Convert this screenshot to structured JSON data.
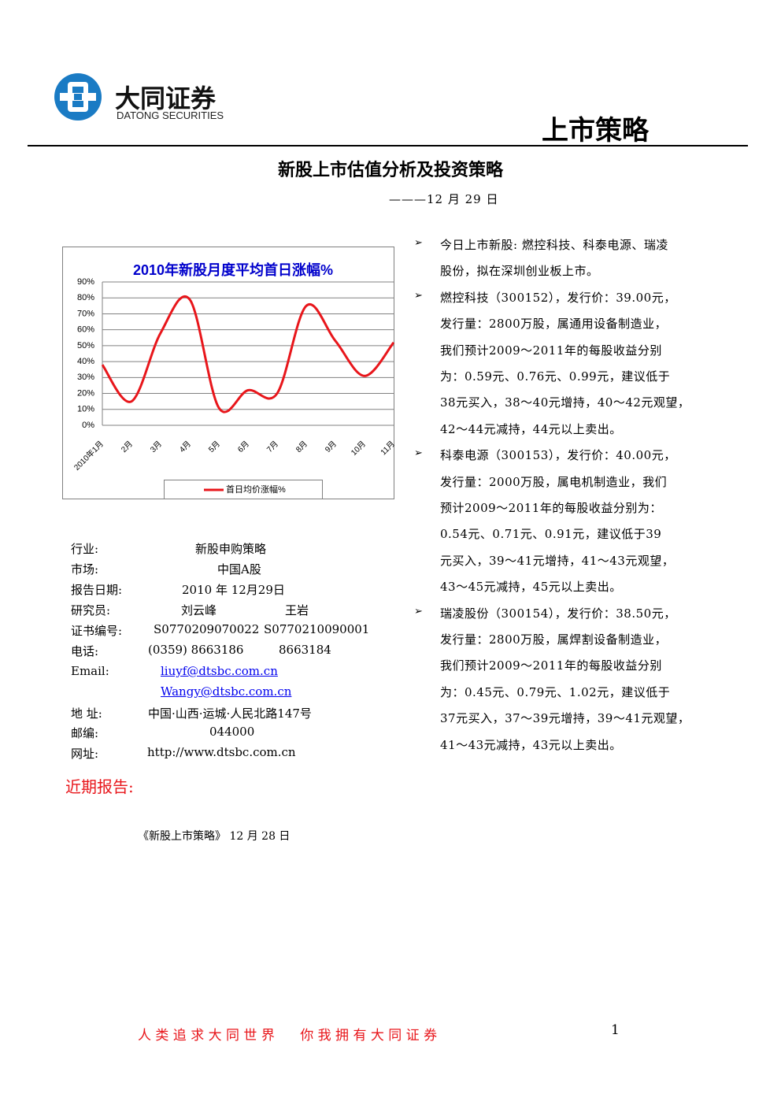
{
  "header": {
    "company": "大同证券",
    "company_en": "DATONG SECURITIES",
    "section": "上市策略"
  },
  "title": "新股上市估值分析及投资策略",
  "date": "———12 月 29 日",
  "chart_data": {
    "type": "line",
    "title": "2010年新股月度平均首日涨幅%",
    "categories": [
      "2010年1月",
      "2月",
      "3月",
      "4月",
      "5月",
      "6月",
      "7月",
      "8月",
      "9月",
      "10月",
      "11月"
    ],
    "series": [
      {
        "name": "首日均价涨幅%",
        "color": "#e8161b",
        "values": [
          38,
          15,
          58,
          79,
          11,
          22,
          20,
          75,
          53,
          31,
          52
        ]
      }
    ],
    "ylim": [
      0,
      90
    ],
    "yticks": [
      {
        "value": 0,
        "label": "0%"
      },
      {
        "value": 10,
        "label": "10%"
      },
      {
        "value": 20,
        "label": "20%"
      },
      {
        "value": 30,
        "label": "30%"
      },
      {
        "value": 40,
        "label": "40%"
      },
      {
        "value": 50,
        "label": "50%"
      },
      {
        "value": 60,
        "label": "60%"
      },
      {
        "value": 70,
        "label": "70%"
      },
      {
        "value": 80,
        "label": "80%"
      },
      {
        "value": 90,
        "label": "90%"
      }
    ],
    "grid": true,
    "smooth": true,
    "legend": "bottom"
  },
  "info": [
    {
      "label": "行业:",
      "values": [
        "新股申购策略"
      ]
    },
    {
      "label": "市场:",
      "values": [
        "中国A股"
      ]
    },
    {
      "label": "报告日期:",
      "values": [
        "2010 年 12月29日"
      ]
    },
    {
      "label": "研究员:",
      "values": [
        "刘云峰",
        "王岩"
      ]
    },
    {
      "label": "证书编号:",
      "values": [
        "S0770209070022",
        "S0770210090001"
      ]
    },
    {
      "label": "电话:",
      "values": [
        "(0359) 8663186",
        "8663184"
      ]
    },
    {
      "label": "Email:",
      "values": [
        "liuyf@dtsbc.com.cn",
        "Wangy@dtsbc.com.cn"
      ]
    },
    {
      "label": "地 址:",
      "values": [
        "中国·山西·运城·人民北路147号"
      ]
    },
    {
      "label": "邮编:",
      "values": [
        "044000"
      ]
    },
    {
      "label": "网址:",
      "values": [
        "http://www.dtsbc.com.cn"
      ]
    }
  ],
  "bullets": [
    [
      "今日上市新股: 燃控科技、科泰电源、瑞凌",
      "股份，拟在深圳创业板上市。"
    ],
    [
      "燃控科技（300152），发行价：39.00元，",
      "发行量：2800万股，属通用设备制造业，",
      "我们预计2009～2011年的每股收益分别",
      "为：0.59元、0.76元、0.99元，建议低于",
      "38元买入，38～40元增持，40～42元观望，",
      "42～44元减持，44元以上卖出。"
    ],
    [
      "科泰电源（300153），发行价：40.00元，",
      "发行量：2000万股，属电机制造业，我们",
      "预计2009～2011年的每股收益分别为：",
      "0.54元、0.71元、0.91元，建议低于39",
      "元买入，39～41元增持，41～43元观望，",
      "43～45元减持，45元以上卖出。"
    ],
    [
      "瑞凌股份（300154），发行价：38.50元，",
      "发行量：2800万股，属焊割设备制造业，",
      "我们预计2009～2011年的每股收益分别",
      "为：0.45元、0.79元、1.02元，建议低于",
      "37元买入，37～39元增持，39～41元观望，",
      "41～43元减持，43元以上卖出。"
    ]
  ],
  "recent": {
    "heading": "近期报告:",
    "items": [
      "《新股上市策略》 12 月 28 日"
    ]
  },
  "footer": {
    "slogan": "人 类 追 求 大 同 世 界      你 我 拥 有 大 同 证 券",
    "page": "1"
  }
}
